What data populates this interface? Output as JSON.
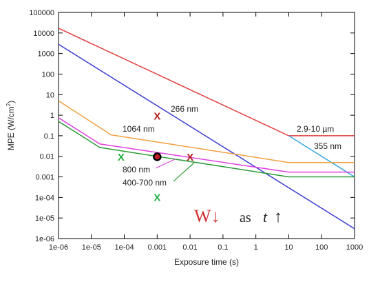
{
  "chart_data": {
    "type": "line",
    "xlabel": "Exposure time (s)",
    "ylabel": "MPE (W/cm²)",
    "ylabel_main": "MPE (W/cm",
    "ylabel_sup": "2",
    "ylabel_end": ")",
    "xscale": "log",
    "yscale": "log",
    "xlim": [
      1e-06,
      1000
    ],
    "ylim": [
      1e-06,
      100000
    ],
    "x_ticks": [
      1e-06,
      1e-05,
      0.0001,
      0.001,
      0.01,
      0.1,
      1,
      10,
      100,
      1000
    ],
    "x_tick_labels": [
      "1e-06",
      "1e-05",
      "1e-04",
      "0.001",
      "0.01",
      "0.1",
      "1",
      "10",
      "100",
      "1000"
    ],
    "y_ticks": [
      1e-06,
      1e-05,
      0.0001,
      0.001,
      0.01,
      0.1,
      1,
      10,
      100,
      1000,
      10000,
      100000
    ],
    "y_tick_labels": [
      "1e-06",
      "1e-05",
      "1e-04",
      "0.001",
      "0.01",
      "0.1",
      "1",
      "10",
      "100",
      "1000",
      "10000",
      "100000"
    ],
    "grid": false,
    "series": [
      {
        "name": "2.9-10 µm",
        "color": "#e03c3c",
        "x": [
          1e-06,
          10,
          1000
        ],
        "y": [
          17000,
          0.1,
          0.1
        ]
      },
      {
        "name": "266 nm",
        "color": "#3a3ad0",
        "x": [
          1e-06,
          1000
        ],
        "y": [
          2800,
          3e-06
        ]
      },
      {
        "name": "355 nm",
        "color": "#3aa6e0",
        "x": [
          10,
          1000
        ],
        "y": [
          0.1,
          0.001
        ]
      },
      {
        "name": "1064 nm",
        "color": "#f0a040",
        "x": [
          1e-06,
          4e-05,
          10,
          1000
        ],
        "y": [
          5,
          0.11,
          0.005,
          0.005
        ]
      },
      {
        "name": "800 nm",
        "color": "#e040e0",
        "x": [
          1e-06,
          1.8e-05,
          10,
          1000
        ],
        "y": [
          0.75,
          0.04,
          0.0017,
          0.0017
        ]
      },
      {
        "name": "400-700 nm",
        "color": "#2e9a3a",
        "x": [
          1e-06,
          1.8e-05,
          10,
          1000
        ],
        "y": [
          0.5,
          0.027,
          0.001,
          0.001
        ]
      }
    ],
    "markers": [
      {
        "symbol": "X",
        "color": "#b02020",
        "x": 0.001,
        "y": 0.9
      },
      {
        "symbol": "X",
        "color": "#b02020",
        "x": 0.01,
        "y": 0.009
      },
      {
        "symbol": "X",
        "color": "#20b040",
        "x": 8e-05,
        "y": 0.009
      },
      {
        "symbol": "X",
        "color": "#20b040",
        "x": 0.001,
        "y": 0.0001
      },
      {
        "symbol": "dot",
        "color": "#000000",
        "fill": "#c02020",
        "x": 0.001,
        "y": 0.0095
      }
    ],
    "annotations": {
      "w_arrow": "W↓",
      "as_text": "as",
      "t_arrow_t": "t",
      "t_arrow_sym": "↑",
      "w_color": "#d03030"
    }
  },
  "colors": {
    "frame": "#000000",
    "background": "#ffffff"
  }
}
